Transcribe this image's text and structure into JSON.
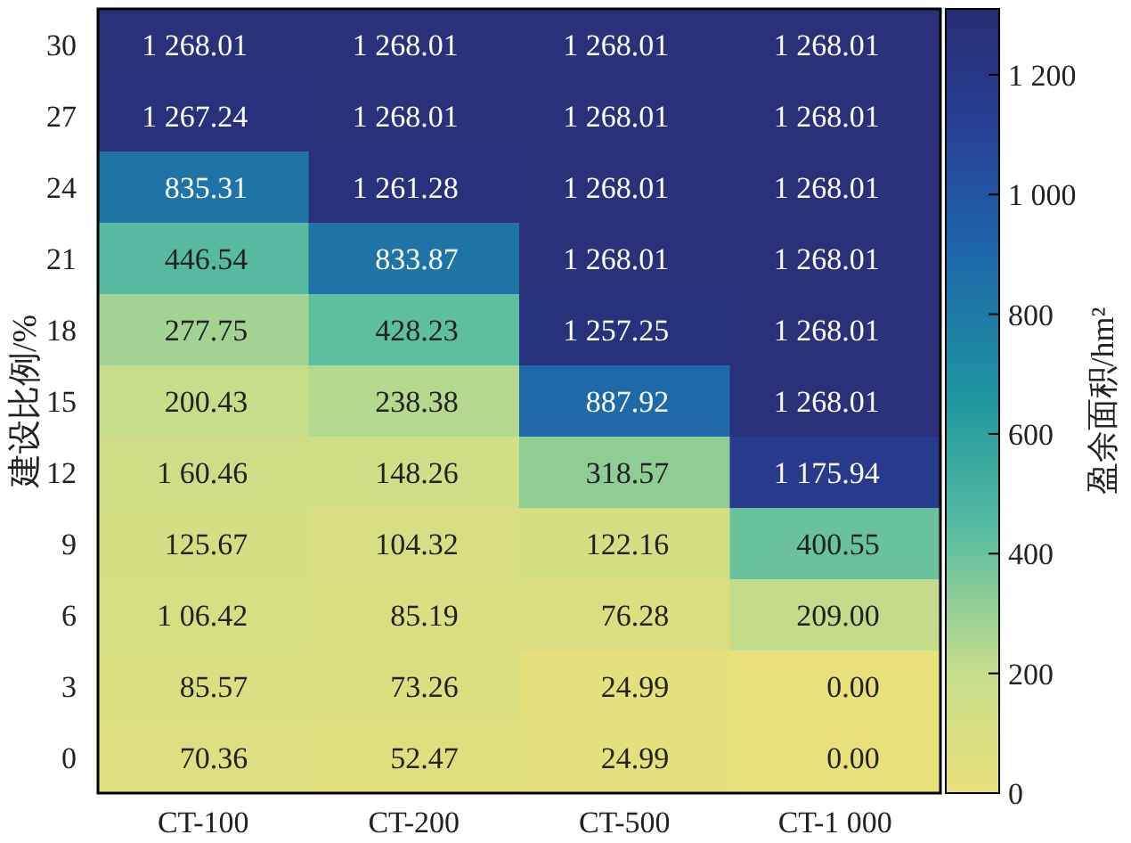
{
  "chart_data": {
    "type": "heatmap",
    "ylabel": "建设比例/%",
    "clabel": "盈余面积/hm²",
    "categories": [
      "CT-100",
      "CT-200",
      "CT-500",
      "CT-1 000"
    ],
    "y_categories": [
      "30",
      "27",
      "24",
      "21",
      "18",
      "15",
      "12",
      "9",
      "6",
      "3",
      "0"
    ],
    "cells": [
      [
        1268.01,
        1268.01,
        1268.01,
        1268.01
      ],
      [
        1267.24,
        1268.01,
        1268.01,
        1268.01
      ],
      [
        835.31,
        1261.28,
        1268.01,
        1268.01
      ],
      [
        446.54,
        833.87,
        1268.01,
        1268.01
      ],
      [
        277.75,
        428.23,
        1257.25,
        1268.01
      ],
      [
        200.43,
        238.38,
        887.92,
        1268.01
      ],
      [
        160.46,
        148.26,
        318.57,
        1175.94
      ],
      [
        125.67,
        104.32,
        122.16,
        400.55
      ],
      [
        106.42,
        85.19,
        76.28,
        209.0
      ],
      [
        85.57,
        73.26,
        24.99,
        0.0
      ],
      [
        70.36,
        52.47,
        24.99,
        0.0
      ]
    ],
    "cell_labels": [
      [
        "1 268.01",
        "1 268.01",
        "1 268.01",
        "1 268.01"
      ],
      [
        "1 267.24",
        "1 268.01",
        "1 268.01",
        "1 268.01"
      ],
      [
        "835.31",
        "1 261.28",
        "1 268.01",
        "1 268.01"
      ],
      [
        "446.54",
        "833.87",
        "1 268.01",
        "1 268.01"
      ],
      [
        "277.75",
        "428.23",
        "1 257.25",
        "1 268.01"
      ],
      [
        "200.43",
        "238.38",
        "887.92",
        "1 268.01"
      ],
      [
        "1 60.46",
        "148.26",
        "318.57",
        "1 175.94"
      ],
      [
        "125.67",
        "104.32",
        "122.16",
        "400.55"
      ],
      [
        "1 06.42",
        "85.19",
        "76.28",
        "209.00"
      ],
      [
        "85.57",
        "73.26",
        "24.99",
        "0.00"
      ],
      [
        "70.36",
        "52.47",
        "24.99",
        "0.00"
      ]
    ],
    "clim": [
      0,
      1310
    ],
    "cticks": [
      0,
      200,
      400,
      600,
      800,
      {
        "value": 1000,
        "label": "1 000"
      },
      {
        "value": 1200,
        "label": "1 200"
      }
    ]
  }
}
